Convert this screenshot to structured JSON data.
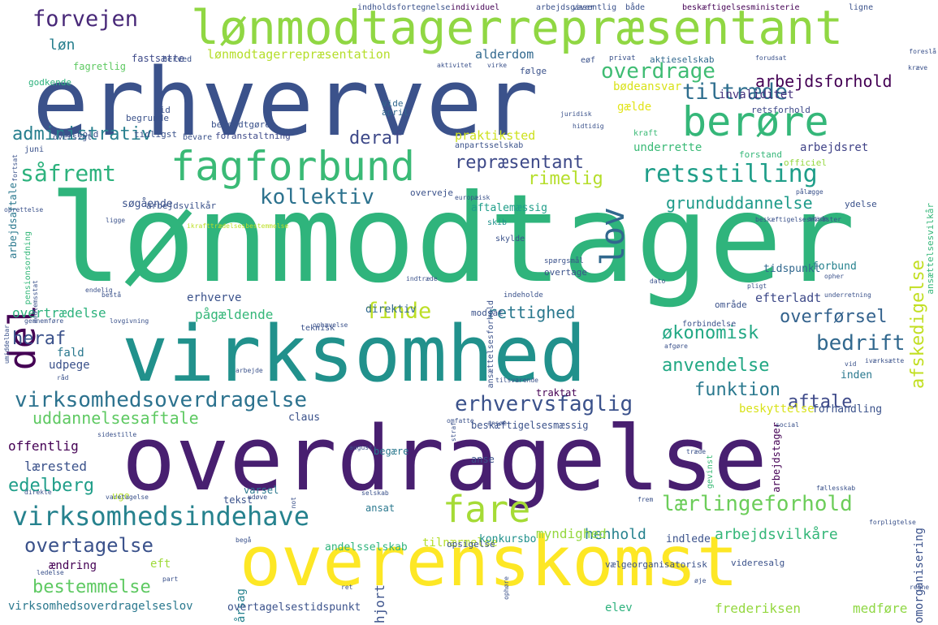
{
  "palette": {
    "background": "#ffffff",
    "dark_purple": "#440154",
    "indigo": "#3b528b",
    "blue": "#31688e",
    "teal": "#21918c",
    "green": "#35b779",
    "light_green": "#90d743",
    "yellow": "#fde725"
  },
  "words": [
    {
      "text": "lønmodtager",
      "color": "#2fb47c"
    },
    {
      "text": "erhverver",
      "color": "#3b528b"
    },
    {
      "text": "overdragelse",
      "color": "#481f70"
    },
    {
      "text": "virksomhed",
      "color": "#21918c"
    },
    {
      "text": "overenskomst",
      "color": "#fde725"
    },
    {
      "text": "lønmodtagerrepræsentant",
      "color": "#90d743"
    },
    {
      "text": "berøre",
      "color": "#35b779"
    },
    {
      "text": "fagforbund",
      "color": "#3aba76"
    },
    {
      "text": "del",
      "color": "#440154"
    },
    {
      "text": "lov",
      "color": "#31688e"
    },
    {
      "text": "fare",
      "color": "#a5db36"
    },
    {
      "text": "virksomhedsindehave",
      "color": "#26828e"
    },
    {
      "text": "virksomhedsoverdragelse",
      "color": "#2c728e"
    },
    {
      "text": "forvejen",
      "color": "#482878"
    },
    {
      "text": "overdrage",
      "color": "#3fbc73"
    },
    {
      "text": "tiltræde",
      "color": "#2e6e8e"
    },
    {
      "text": "arbejdsforhold",
      "color": "#440154"
    },
    {
      "text": "retsstilling",
      "color": "#1f9e89"
    },
    {
      "text": "afskedigelse",
      "color": "#c2df23"
    },
    {
      "text": "kollektiv",
      "color": "#2c728e"
    },
    {
      "text": "grunduddannelse",
      "color": "#1e9b8a"
    },
    {
      "text": "repræsentant",
      "color": "#3e4a89"
    },
    {
      "text": "rimelig",
      "color": "#b5de2b"
    },
    {
      "text": "administrativ",
      "color": "#277f8e"
    },
    {
      "text": "såfremt",
      "color": "#2db27d"
    },
    {
      "text": "deraf",
      "color": "#3e4989"
    },
    {
      "text": "finde",
      "color": "#bddf26"
    },
    {
      "text": "erhvervsfaglig",
      "color": "#3b528b"
    },
    {
      "text": "uddannelsesaftale",
      "color": "#5ec962"
    },
    {
      "text": "anvendelse",
      "color": "#22a884"
    },
    {
      "text": "bedrift",
      "color": "#31688e"
    },
    {
      "text": "overførsel",
      "color": "#33628d"
    },
    {
      "text": "funktion",
      "color": "#2a788e"
    },
    {
      "text": "aftale",
      "color": "#3e4a89"
    },
    {
      "text": "lærlingeforhold",
      "color": "#6ccd5a"
    },
    {
      "text": "overtagelse",
      "color": "#3b528b"
    },
    {
      "text": "bestemmelse",
      "color": "#5ec962"
    },
    {
      "text": "rettighed",
      "color": "#2a788e"
    },
    {
      "text": "økonomisk",
      "color": "#22a884"
    },
    {
      "text": "heraf",
      "color": "#3b528b"
    },
    {
      "text": "edelberg",
      "color": "#1f9e89"
    },
    {
      "text": "arbejdsvilkåre",
      "color": "#35b779"
    },
    {
      "text": "henhold",
      "color": "#26828e"
    },
    {
      "text": "myndighed",
      "color": "#95d840"
    },
    {
      "text": "offentlig",
      "color": "#440154"
    },
    {
      "text": "lærested",
      "color": "#3b528b"
    },
    {
      "text": "løn",
      "color": "#277f8e"
    },
    {
      "text": "alderdom",
      "color": "#31688e"
    },
    {
      "text": "lønmodtagerrepræsentation",
      "color": "#b5de2b"
    },
    {
      "text": "bødeansvar",
      "color": "#d8e219"
    },
    {
      "text": "invaliditet",
      "color": "#46337e"
    },
    {
      "text": "praktiksted",
      "color": "#cde11d"
    },
    {
      "text": "gælde",
      "color": "#e2e418"
    },
    {
      "text": "underrette",
      "color": "#3aba76"
    },
    {
      "text": "arbejdsret",
      "color": "#404387"
    },
    {
      "text": "søgående",
      "color": "#3b528b"
    },
    {
      "text": "aftalemæssig",
      "color": "#1f9e89"
    },
    {
      "text": "erhverve",
      "color": "#3b528b"
    },
    {
      "text": "pågældende",
      "color": "#35b779"
    },
    {
      "text": "overtrædelse",
      "color": "#2db27d"
    },
    {
      "text": "direktiv",
      "color": "#31688e"
    },
    {
      "text": "efterladt",
      "color": "#3e4a89"
    },
    {
      "text": "udpege",
      "color": "#3b528b"
    },
    {
      "text": "fald",
      "color": "#2a788e"
    },
    {
      "text": "inden",
      "color": "#2a788e"
    },
    {
      "text": "claus",
      "color": "#3b528b"
    },
    {
      "text": "beskyttelse",
      "color": "#d8e219"
    },
    {
      "text": "forhandling",
      "color": "#3b528b"
    },
    {
      "text": "ændring",
      "color": "#440154"
    },
    {
      "text": "eft",
      "color": "#9fda3a"
    },
    {
      "text": "hjort",
      "color": "#3b528b"
    },
    {
      "text": "årsag",
      "color": "#26828e"
    },
    {
      "text": "virksomhedsoverdragelseslov",
      "color": "#2a788e"
    },
    {
      "text": "overtagelsestidspunkt",
      "color": "#3b528b"
    },
    {
      "text": "elev",
      "color": "#2db27d"
    },
    {
      "text": "frederiksen",
      "color": "#95d840"
    },
    {
      "text": "medføre",
      "color": "#8fd744"
    },
    {
      "text": "tilnærmelse",
      "color": "#b5de2b"
    },
    {
      "text": "konkursbo",
      "color": "#21918c"
    },
    {
      "text": "andelsselskab",
      "color": "#2fb47c"
    },
    {
      "text": "indlede",
      "color": "#3b528b"
    },
    {
      "text": "omorganisering",
      "color": "#3b528b"
    },
    {
      "text": "tidspunkt",
      "color": "#31688e"
    },
    {
      "text": "forbund",
      "color": "#26828e"
    },
    {
      "text": "arbejdsaftale",
      "color": "#2a788e"
    },
    {
      "text": "fagretlig",
      "color": "#5ec962"
    },
    {
      "text": "fastsætte",
      "color": "#3e4a89"
    },
    {
      "text": "godkende",
      "color": "#2db27d"
    },
    {
      "text": "herved",
      "color": "#3b528b"
    },
    {
      "text": "følge",
      "color": "#3b528b"
    },
    {
      "text": "aktieselskab",
      "color": "#31688e"
    },
    {
      "text": "tid",
      "color": "#3b528b"
    },
    {
      "text": "begrunde",
      "color": "#3b528b"
    },
    {
      "text": "foranstaltning",
      "color": "#3e4a89"
    },
    {
      "text": "bevare",
      "color": "#3b528b"
    },
    {
      "text": "tidligst",
      "color": "#3b528b"
    },
    {
      "text": "bekendtgøre",
      "color": "#3b528b"
    },
    {
      "text": "forhold",
      "color": "#3b528b"
    },
    {
      "text": "oversigt",
      "color": "#3b528b"
    },
    {
      "text": "juni",
      "color": "#3b528b"
    },
    {
      "text": "april",
      "color": "#31688e"
    },
    {
      "text": "vide",
      "color": "#31688e"
    },
    {
      "text": "overveje",
      "color": "#3b528b"
    },
    {
      "text": "anpartsselskab",
      "color": "#3b528b"
    },
    {
      "text": "kraft",
      "color": "#3aba76"
    },
    {
      "text": "retsforhold",
      "color": "#3e4a89"
    },
    {
      "text": "forstand",
      "color": "#35b779"
    },
    {
      "text": "officiel",
      "color": "#95d840"
    },
    {
      "text": "ydelse",
      "color": "#3b528b"
    },
    {
      "text": "ansættelsesvilkår",
      "color": "#35b779"
    },
    {
      "text": "arbejdsvilkår",
      "color": "#3b528b"
    },
    {
      "text": "pensionsordning",
      "color": "#35b779"
    },
    {
      "text": "skib",
      "color": "#21918c"
    },
    {
      "text": "skylde",
      "color": "#3b528b"
    },
    {
      "text": "ikrafttrædelsesbestemmelse",
      "color": "#bddf26"
    },
    {
      "text": "beskæftigelsesminister",
      "color": "#3b528b"
    },
    {
      "text": "overtage",
      "color": "#3b528b"
    },
    {
      "text": "indeholde",
      "color": "#3b528b"
    },
    {
      "text": "ansættelsesforhold",
      "color": "#3b528b"
    },
    {
      "text": "spørgsmål",
      "color": "#3b528b"
    },
    {
      "text": "modsat",
      "color": "#3b528b"
    },
    {
      "text": "område",
      "color": "#3b528b"
    },
    {
      "text": "forbindelse",
      "color": "#3b528b"
    },
    {
      "text": "teknisk",
      "color": "#3b528b"
    },
    {
      "text": "traktat",
      "color": "#440154"
    },
    {
      "text": "gevinst",
      "color": "#3aba76"
    },
    {
      "text": "arbejdstager",
      "color": "#440154"
    },
    {
      "text": "varsel",
      "color": "#2a788e"
    },
    {
      "text": "ansat",
      "color": "#2a788e"
    },
    {
      "text": "tekst",
      "color": "#3b528b"
    },
    {
      "text": "anse",
      "color": "#3b528b"
    },
    {
      "text": "begære",
      "color": "#2a788e"
    },
    {
      "text": "beskæftigelsesmæssig",
      "color": "#3b528b"
    },
    {
      "text": "vælgeorganisatorisk",
      "color": "#3b528b"
    },
    {
      "text": "videresalg",
      "color": "#3b528b"
    },
    {
      "text": "opsigelse",
      "color": "#3b528b"
    },
    {
      "text": "uge",
      "color": "#b5de2b"
    },
    {
      "text": "indholdsfortegnelse",
      "color": "#3b528b"
    },
    {
      "text": "individuel",
      "color": "#440154"
    },
    {
      "text": "arbejdsgiver",
      "color": "#3b528b"
    },
    {
      "text": "væsentlig",
      "color": "#3b528b"
    },
    {
      "text": "både",
      "color": "#3b528b"
    },
    {
      "text": "beskæftigelsesministerie",
      "color": "#440154"
    },
    {
      "text": "ligne",
      "color": "#3b528b"
    },
    {
      "text": "eøf",
      "color": "#3b528b"
    },
    {
      "text": "privat",
      "color": "#3b528b"
    },
    {
      "text": "forudsat",
      "color": "#3b528b"
    },
    {
      "text": "aktivitet",
      "color": "#3b528b"
    },
    {
      "text": "virke",
      "color": "#3b528b"
    },
    {
      "text": "foreslå",
      "color": "#3b528b"
    },
    {
      "text": "kræve",
      "color": "#3b528b"
    },
    {
      "text": "juridisk",
      "color": "#3b528b"
    },
    {
      "text": "hidtidig",
      "color": "#3b528b"
    },
    {
      "text": "fortsat",
      "color": "#3b528b"
    },
    {
      "text": "oprettelse",
      "color": "#3b528b"
    },
    {
      "text": "europæisk",
      "color": "#3b528b"
    },
    {
      "text": "ligge",
      "color": "#3b528b"
    },
    {
      "text": "pålægge",
      "color": "#3b528b"
    },
    {
      "text": "skade",
      "color": "#3b528b"
    },
    {
      "text": "medlemsstat",
      "color": "#3b528b"
    },
    {
      "text": "endelig",
      "color": "#3b528b"
    },
    {
      "text": "bestå",
      "color": "#3b528b"
    },
    {
      "text": "indtræde",
      "color": "#3b528b"
    },
    {
      "text": "dato",
      "color": "#3b528b"
    },
    {
      "text": "opher",
      "color": "#3b528b"
    },
    {
      "text": "pligt",
      "color": "#3b528b"
    },
    {
      "text": "underretning",
      "color": "#3b528b"
    },
    {
      "text": "umiddelbar",
      "color": "#3b528b"
    },
    {
      "text": "gennemføre",
      "color": "#3b528b"
    },
    {
      "text": "lovgivning",
      "color": "#3b528b"
    },
    {
      "text": "ophævelse",
      "color": "#3b528b"
    },
    {
      "text": "afgøre",
      "color": "#3b528b"
    },
    {
      "text": "iværksætte",
      "color": "#3b528b"
    },
    {
      "text": "vid",
      "color": "#3b528b"
    },
    {
      "text": "råd",
      "color": "#3b528b"
    },
    {
      "text": "arbejde",
      "color": "#3b528b"
    },
    {
      "text": "tilsvarende",
      "color": "#3b528b"
    },
    {
      "text": "sidestille",
      "color": "#3b528b"
    },
    {
      "text": "straf",
      "color": "#3b528b"
    },
    {
      "text": "omfatte",
      "color": "#3b528b"
    },
    {
      "text": "ansøe",
      "color": "#3b528b"
    },
    {
      "text": "social",
      "color": "#3b528b"
    },
    {
      "text": "august",
      "color": "#3b528b"
    },
    {
      "text": "træde",
      "color": "#3b528b"
    },
    {
      "text": "fællesskab",
      "color": "#3b528b"
    },
    {
      "text": "direkte",
      "color": "#3b528b"
    },
    {
      "text": "varetagelse",
      "color": "#3b528b"
    },
    {
      "text": "udøve",
      "color": "#3b528b"
    },
    {
      "text": "not",
      "color": "#3b528b"
    },
    {
      "text": "selskab",
      "color": "#3b528b"
    },
    {
      "text": "frem",
      "color": "#3b528b"
    },
    {
      "text": "forpligtelse",
      "color": "#3b528b"
    },
    {
      "text": "begå",
      "color": "#3b528b"
    },
    {
      "text": "ledelse",
      "color": "#3b528b"
    },
    {
      "text": "part",
      "color": "#3b528b"
    },
    {
      "text": "ret",
      "color": "#3b528b"
    },
    {
      "text": "ophøre",
      "color": "#3b528b"
    },
    {
      "text": "øje",
      "color": "#3b528b"
    },
    {
      "text": "regne",
      "color": "#3b528b"
    }
  ]
}
